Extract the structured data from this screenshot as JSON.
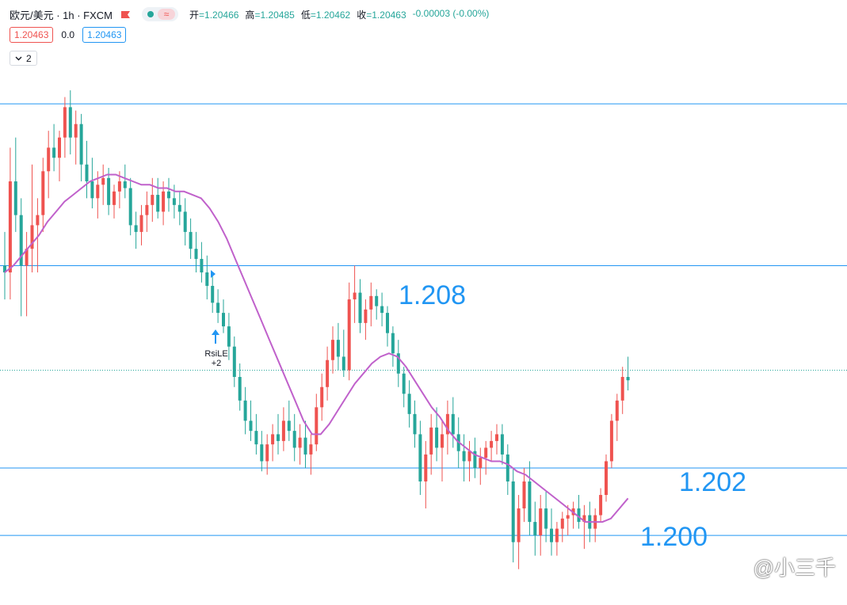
{
  "header": {
    "symbol": "欧元/美元 · 1h · FXCM",
    "ohlc": [
      {
        "label": "开",
        "value": "=1.20466"
      },
      {
        "label": "高",
        "value": "=1.20485"
      },
      {
        "label": "低",
        "value": "=1.20462"
      },
      {
        "label": "收",
        "value": "=1.20463"
      }
    ],
    "change": "-0.00003 (-0.00%)",
    "status_icon": "market-open-dot",
    "wave_icon": "≈"
  },
  "quote": {
    "bid": "1.20463",
    "spread": "0.0",
    "ask": "1.20463"
  },
  "indicators_toggle": {
    "count": "2"
  },
  "levels": [
    {
      "label": "1.208",
      "price": 1.208
    },
    {
      "label": "1.202",
      "price": 1.202
    },
    {
      "label": "1.200",
      "price": 1.2
    }
  ],
  "strategy_signal": {
    "name": "RsiLE",
    "qty": "+2"
  },
  "watermark": {
    "text": "@小三千"
  },
  "colors": {
    "up": "#ef5350",
    "down": "#26a69a",
    "level": "#2196f3",
    "ma": "#c061cb"
  },
  "chart_data": {
    "type": "candlestick",
    "title": "欧元/美元 · 1h · FXCM",
    "ylim": [
      1.1985,
      1.214
    ],
    "grid": false,
    "horizontal_levels": [
      1.2128,
      1.208,
      1.2049,
      1.202,
      1.2
    ],
    "current_price": 1.20463,
    "candles": [
      [
        1.208,
        1.209,
        1.207,
        1.2078
      ],
      [
        1.2078,
        1.2115,
        1.207,
        1.2105
      ],
      [
        1.2105,
        1.2118,
        1.209,
        1.2095
      ],
      [
        1.2095,
        1.21,
        1.2065,
        1.208
      ],
      [
        1.208,
        1.209,
        1.2065,
        1.2085
      ],
      [
        1.2085,
        1.211,
        1.2078,
        1.2092
      ],
      [
        1.2092,
        1.21,
        1.2078,
        1.2095
      ],
      [
        1.2095,
        1.2112,
        1.209,
        1.2108
      ],
      [
        1.2108,
        1.212,
        1.21,
        1.2115
      ],
      [
        1.2115,
        1.2122,
        1.2108,
        1.2112
      ],
      [
        1.2112,
        1.212,
        1.2105,
        1.2118
      ],
      [
        1.2118,
        1.213,
        1.2112,
        1.2127
      ],
      [
        1.2127,
        1.2132,
        1.2113,
        1.2118
      ],
      [
        1.2118,
        1.2126,
        1.211,
        1.2122
      ],
      [
        1.2122,
        1.2125,
        1.2105,
        1.211
      ],
      [
        1.211,
        1.2117,
        1.21,
        1.2105
      ],
      [
        1.2105,
        1.2112,
        1.2097,
        1.21
      ],
      [
        1.21,
        1.2108,
        1.2094,
        1.2104
      ],
      [
        1.2104,
        1.211,
        1.2098,
        1.2106
      ],
      [
        1.2106,
        1.2109,
        1.2095,
        1.2098
      ],
      [
        1.2098,
        1.2104,
        1.2094,
        1.2102
      ],
      [
        1.2102,
        1.2108,
        1.2097,
        1.2105
      ],
      [
        1.2105,
        1.211,
        1.21,
        1.2103
      ],
      [
        1.2103,
        1.2106,
        1.2089,
        1.2092
      ],
      [
        1.2092,
        1.2096,
        1.2085,
        1.209
      ],
      [
        1.209,
        1.2098,
        1.2086,
        1.2095
      ],
      [
        1.2095,
        1.2102,
        1.209,
        1.2098
      ],
      [
        1.2098,
        1.2106,
        1.2093,
        1.2101
      ],
      [
        1.2101,
        1.2106,
        1.2094,
        1.2096
      ],
      [
        1.2096,
        1.2105,
        1.2092,
        1.2102
      ],
      [
        1.2102,
        1.2106,
        1.2096,
        1.21
      ],
      [
        1.21,
        1.2104,
        1.2094,
        1.2098
      ],
      [
        1.2098,
        1.2102,
        1.2092,
        1.2096
      ],
      [
        1.2096,
        1.21,
        1.2086,
        1.209
      ],
      [
        1.209,
        1.2094,
        1.2082,
        1.2085
      ],
      [
        1.2085,
        1.209,
        1.2078,
        1.2082
      ],
      [
        1.2082,
        1.2087,
        1.2075,
        1.2078
      ],
      [
        1.2078,
        1.2083,
        1.207,
        1.2074
      ],
      [
        1.2074,
        1.2078,
        1.2066,
        1.2069
      ],
      [
        1.2069,
        1.2073,
        1.2063,
        1.2066
      ],
      [
        1.2066,
        1.207,
        1.206,
        1.2062
      ],
      [
        1.2062,
        1.2066,
        1.2052,
        1.2056
      ],
      [
        1.2056,
        1.2059,
        1.2044,
        1.2047
      ],
      [
        1.2047,
        1.2051,
        1.2037,
        1.204
      ],
      [
        1.204,
        1.2044,
        1.203,
        1.2034
      ],
      [
        1.2034,
        1.204,
        1.2028,
        1.2031
      ],
      [
        1.2031,
        1.2036,
        1.2024,
        1.2027
      ],
      [
        1.2027,
        1.2031,
        1.2019,
        1.2022
      ],
      [
        1.2022,
        1.203,
        1.2018,
        1.2027
      ],
      [
        1.2027,
        1.2033,
        1.2022,
        1.203
      ],
      [
        1.203,
        1.2036,
        1.2024,
        1.2028
      ],
      [
        1.2028,
        1.2038,
        1.2025,
        1.2034
      ],
      [
        1.2034,
        1.204,
        1.2028,
        1.2031
      ],
      [
        1.2031,
        1.2036,
        1.2022,
        1.2026
      ],
      [
        1.2026,
        1.2033,
        1.2021,
        1.2029
      ],
      [
        1.2029,
        1.2034,
        1.202,
        1.2024
      ],
      [
        1.2024,
        1.203,
        1.2018,
        1.2027
      ],
      [
        1.2027,
        1.2042,
        1.2025,
        1.2038
      ],
      [
        1.2038,
        1.2048,
        1.2034,
        1.2044
      ],
      [
        1.2044,
        1.2056,
        1.204,
        1.2052
      ],
      [
        1.2052,
        1.2062,
        1.2048,
        1.2058
      ],
      [
        1.2058,
        1.2063,
        1.2049,
        1.2053
      ],
      [
        1.2053,
        1.2061,
        1.2047,
        1.2049
      ],
      [
        1.2049,
        1.2075,
        1.2046,
        1.207
      ],
      [
        1.207,
        1.208,
        1.2063,
        1.2072
      ],
      [
        1.2072,
        1.2076,
        1.206,
        1.2063
      ],
      [
        1.2063,
        1.207,
        1.2058,
        1.2067
      ],
      [
        1.2067,
        1.2075,
        1.2062,
        1.2071
      ],
      [
        1.2071,
        1.2073,
        1.2064,
        1.2068
      ],
      [
        1.2068,
        1.2072,
        1.2062,
        1.2066
      ],
      [
        1.2066,
        1.2068,
        1.2056,
        1.206
      ],
      [
        1.206,
        1.2062,
        1.205,
        1.2054
      ],
      [
        1.2054,
        1.2058,
        1.2044,
        1.2048
      ],
      [
        1.2048,
        1.205,
        1.2038,
        1.2042
      ],
      [
        1.2042,
        1.2046,
        1.2032,
        1.2036
      ],
      [
        1.2036,
        1.204,
        1.2026,
        1.203
      ],
      [
        1.203,
        1.2034,
        1.2012,
        1.2016
      ],
      [
        1.2016,
        1.2028,
        1.2008,
        1.2024
      ],
      [
        1.2024,
        1.2036,
        1.2018,
        1.2032
      ],
      [
        1.2032,
        1.2038,
        1.2022,
        1.2026
      ],
      [
        1.2026,
        1.2034,
        1.2016,
        1.203
      ],
      [
        1.203,
        1.204,
        1.2024,
        1.2036
      ],
      [
        1.2036,
        1.2041,
        1.2026,
        1.203
      ],
      [
        1.203,
        1.2035,
        1.202,
        1.2025
      ],
      [
        1.2025,
        1.203,
        1.2016,
        1.2022
      ],
      [
        1.2022,
        1.2028,
        1.2016,
        1.2025
      ],
      [
        1.2025,
        1.2029,
        1.2017,
        1.202
      ],
      [
        1.202,
        1.2026,
        1.2015,
        1.2023
      ],
      [
        1.2023,
        1.2028,
        1.2018,
        1.2026
      ],
      [
        1.2026,
        1.2031,
        1.2022,
        1.2028
      ],
      [
        1.2028,
        1.2033,
        1.2024,
        1.203
      ],
      [
        1.203,
        1.2033,
        1.2021,
        1.2024
      ],
      [
        1.2024,
        1.2027,
        1.2012,
        1.2016
      ],
      [
        1.2016,
        1.202,
        1.1992,
        1.1998
      ],
      [
        1.1998,
        1.2012,
        1.199,
        1.2008
      ],
      [
        1.2008,
        1.202,
        1.2004,
        1.2016
      ],
      [
        1.2016,
        1.2022,
        1.2,
        1.2004
      ],
      [
        1.2004,
        1.201,
        1.1994,
        1.2
      ],
      [
        1.2,
        1.2012,
        1.1994,
        1.2008
      ],
      [
        1.2008,
        1.2013,
        1.1998,
        1.2002
      ],
      [
        1.2002,
        1.2008,
        1.1994,
        1.1998
      ],
      [
        1.1998,
        1.2004,
        1.1994,
        1.2002
      ],
      [
        1.2002,
        1.2007,
        1.1998,
        1.2005
      ],
      [
        1.2005,
        1.2009,
        1.2,
        1.2006
      ],
      [
        1.2006,
        1.201,
        1.2002,
        1.2008
      ],
      [
        1.2008,
        1.2012,
        1.2002,
        1.2004
      ],
      [
        1.2004,
        1.2009,
        1.1996,
        1.2006
      ],
      [
        1.2006,
        1.201,
        1.1998,
        1.2002
      ],
      [
        1.2002,
        1.2008,
        1.1998,
        1.2006
      ],
      [
        1.2006,
        1.2014,
        1.2004,
        1.2012
      ],
      [
        1.2012,
        1.2024,
        1.201,
        1.2022
      ],
      [
        1.2022,
        1.2036,
        1.202,
        1.2034
      ],
      [
        1.2034,
        1.2042,
        1.2028,
        1.204
      ],
      [
        1.204,
        1.205,
        1.2036,
        1.2047
      ],
      [
        1.2047,
        1.2053,
        1.2043,
        1.2046
      ]
    ],
    "moving_average": {
      "name": "MA",
      "values": [
        1.2078,
        1.208,
        1.2083,
        1.2086,
        1.2089,
        1.2093,
        1.2096,
        1.2099,
        1.2101,
        1.2103,
        1.2105,
        1.2106,
        1.2107,
        1.2107,
        1.2106,
        1.2105,
        1.2104,
        1.2104,
        1.2103,
        1.2103,
        1.2102,
        1.2102,
        1.2101,
        1.21,
        1.2097,
        1.2093,
        1.2088,
        1.2082,
        1.2076,
        1.207,
        1.2064,
        1.2058,
        1.2052,
        1.2046,
        1.204,
        1.2034,
        1.203,
        1.203,
        1.2033,
        1.2037,
        1.2041,
        1.2045,
        1.2048,
        1.2051,
        1.2053,
        1.2054,
        1.2053,
        1.205,
        1.2046,
        1.2042,
        1.2038,
        1.2035,
        1.2031,
        1.2028,
        1.2026,
        1.2024,
        1.2023,
        1.2022,
        1.2022,
        1.2021,
        1.2019,
        1.2018,
        1.2016,
        1.2014,
        1.2012,
        1.201,
        1.2008,
        1.2006,
        1.2004,
        1.2004,
        1.2004,
        1.2005,
        1.2008,
        1.2011
      ]
    }
  }
}
